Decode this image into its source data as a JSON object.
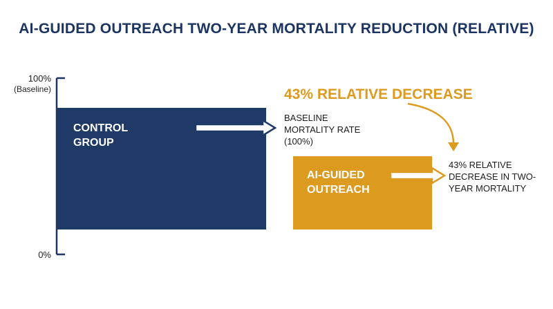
{
  "colors": {
    "navy": "#1f3a66",
    "gold": "#dc9a1f",
    "text": "#1b1b1b"
  },
  "chart_data": {
    "type": "bar",
    "title": "AI-GUIDED OUTREACH TWO-YEAR MORTALITY REDUCTION (RELATIVE)",
    "ylim": [
      0,
      100
    ],
    "y_ticks": [
      {
        "value": 100,
        "label": "100%",
        "sublabel": "(Baseline)"
      },
      {
        "value": 0,
        "label": "0%"
      }
    ],
    "categories": [
      "CONTROL GROUP",
      "AI-GUIDED OUTREACH"
    ],
    "bars": [
      {
        "label_lines": [
          "CONTROL",
          "GROUP"
        ],
        "color": "#1f3a66",
        "callout_lines": [
          "BASELINE",
          "MORTALITY RATE",
          "(100%)"
        ]
      },
      {
        "label_lines": [
          "AI-GUIDED",
          "OUTREACH"
        ],
        "color": "#dc9a1f",
        "callout_lines": [
          "43% RELATIVE",
          "DECREASE IN TWO-",
          "YEAR MORTALITY"
        ]
      }
    ],
    "annotation": {
      "text": "43% RELATIVE DECREASE",
      "color": "#dc9a1f"
    }
  }
}
